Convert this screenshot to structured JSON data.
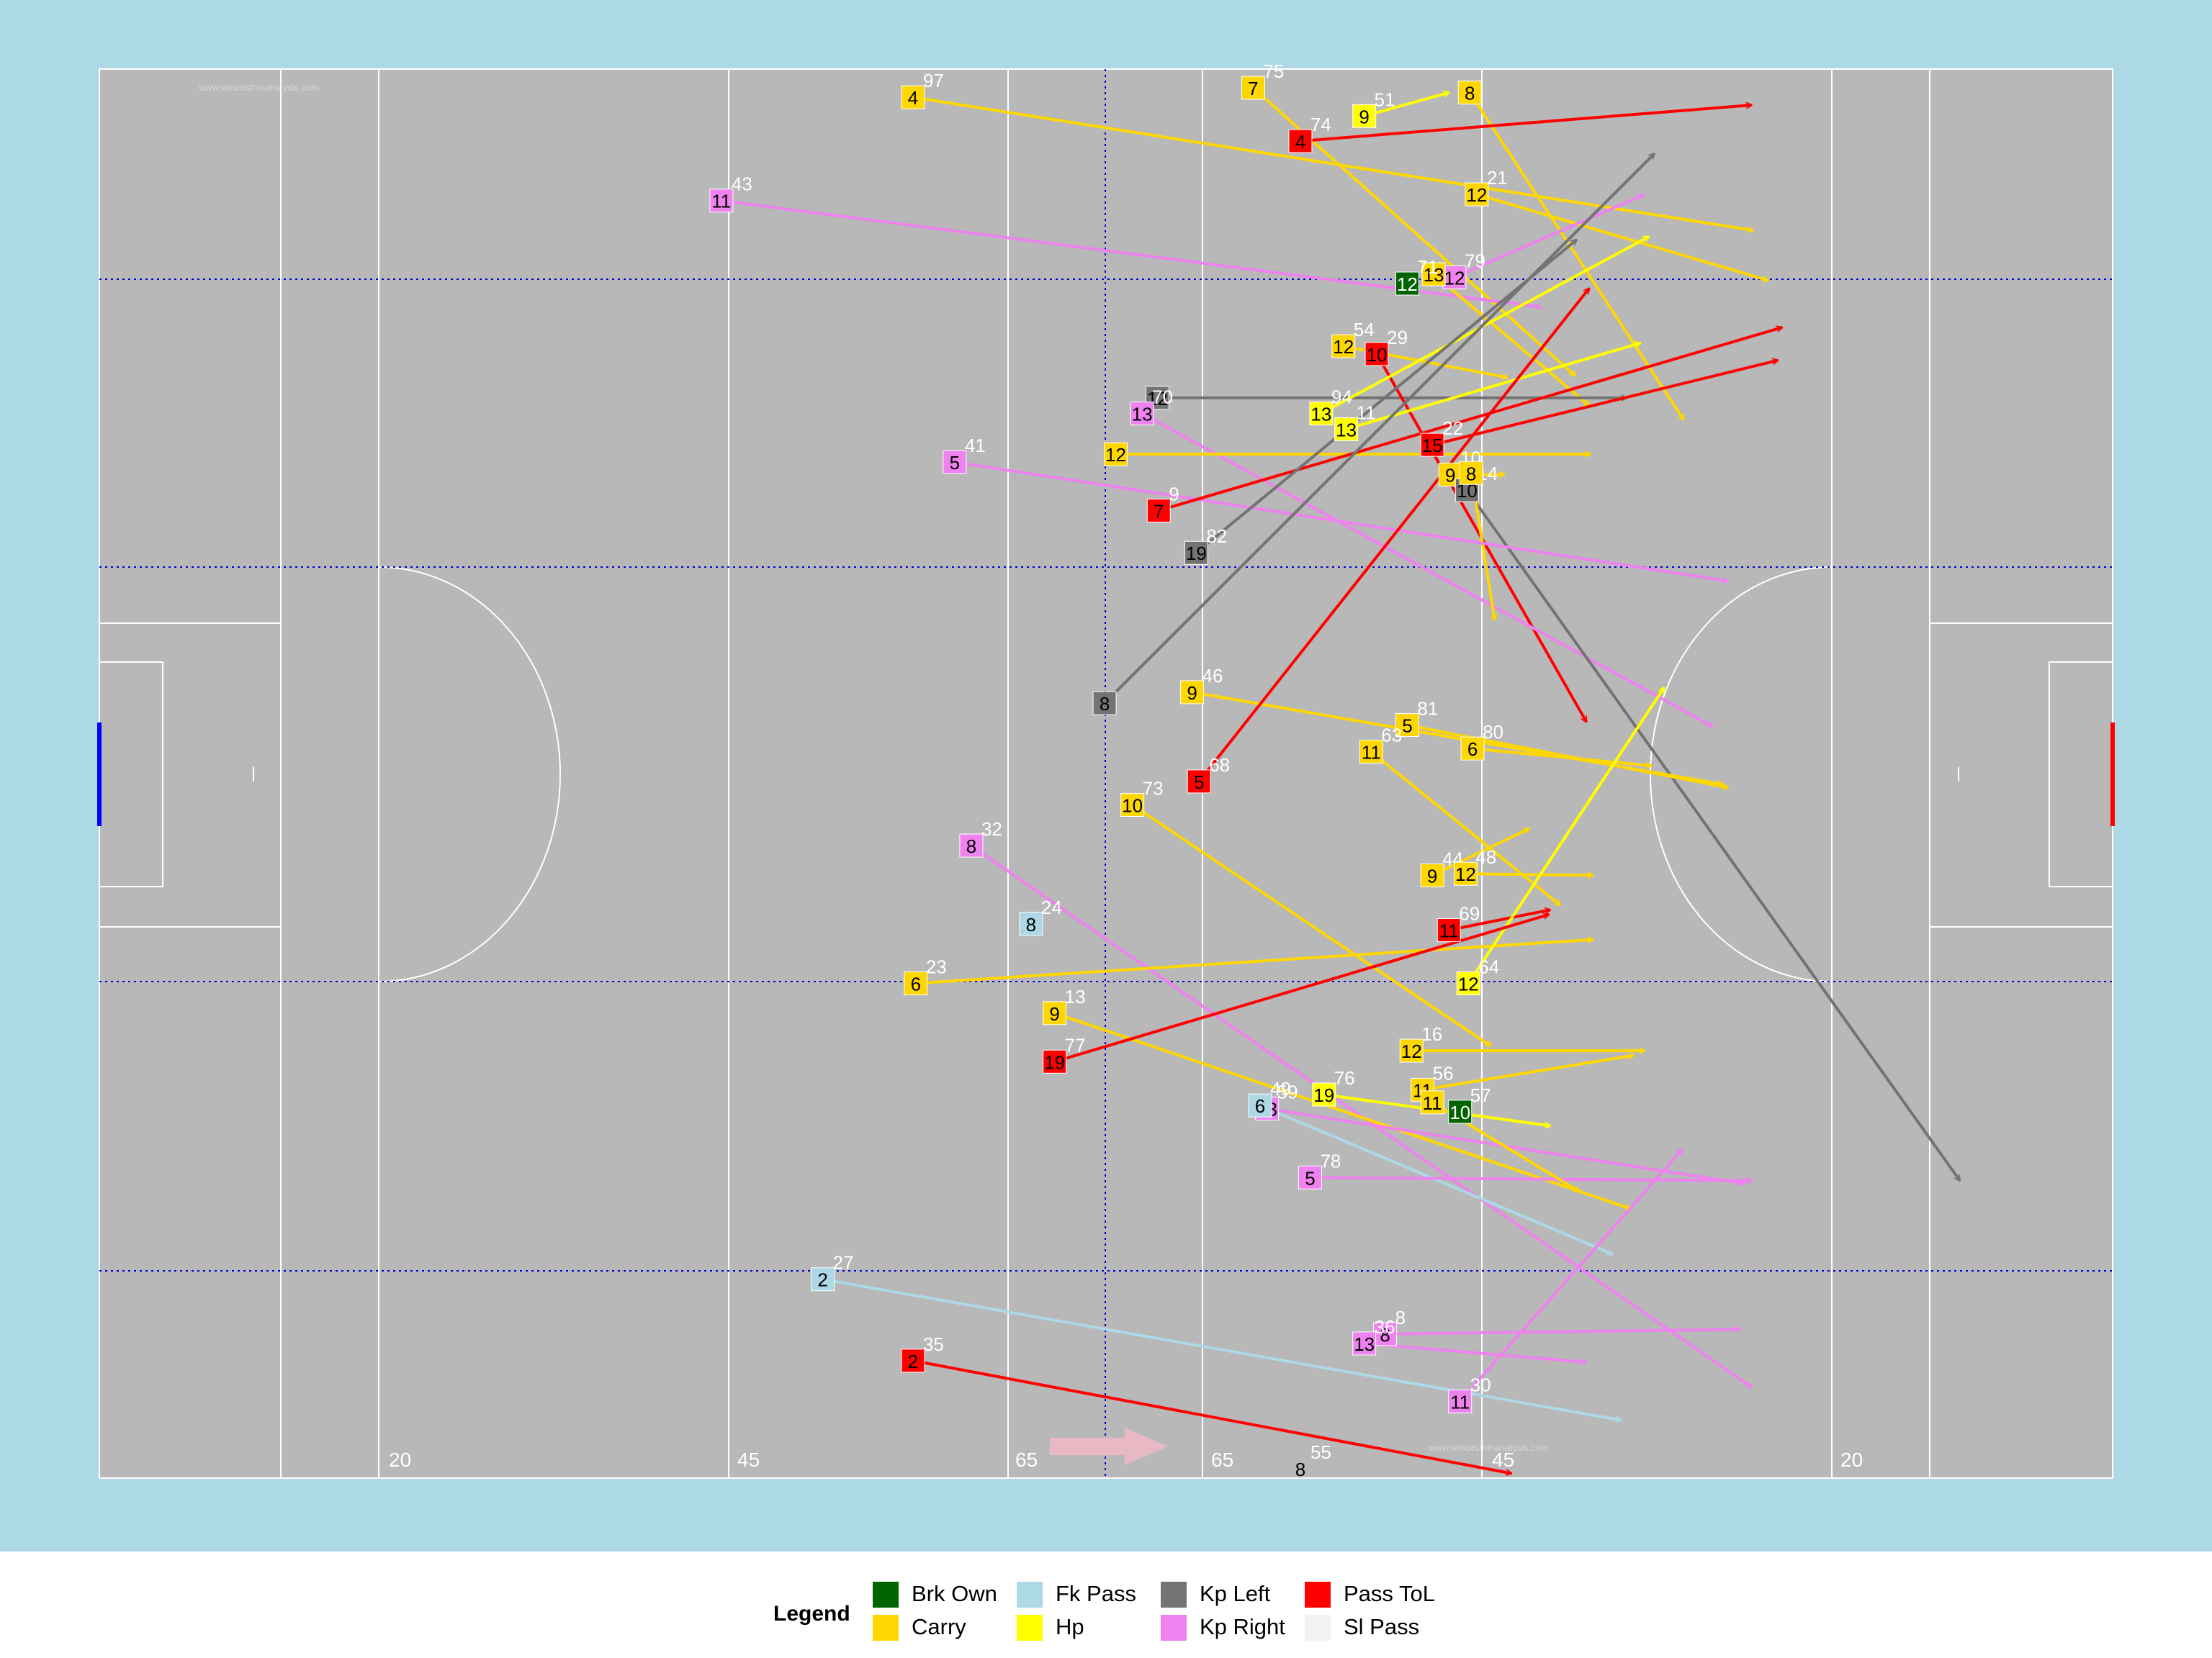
{
  "watermark": "www.wincesthinanalysis.com",
  "chart_data": {
    "type": "scatter",
    "subtype": "pitch-event-map-with-arrows",
    "x_axis": "pitch length (left goal to right goal)",
    "y_axis": "pitch width",
    "xlim": [
      0,
      145
    ],
    "ylim": [
      0,
      90
    ],
    "distance_markings": [
      "20",
      "45",
      "65",
      "65",
      "45",
      "20"
    ],
    "attack_direction": "left-to-right",
    "legend": {
      "title": "Legend",
      "position": "bottom",
      "items": [
        {
          "label": "Brk Own",
          "color": "#006400"
        },
        {
          "label": "Carry",
          "color": "#FFD700"
        },
        {
          "label": "Fk Pass",
          "color": "#ADD8E6"
        },
        {
          "label": "Hp",
          "color": "#FFFF00"
        },
        {
          "label": "Kp Left",
          "color": "#737373"
        },
        {
          "label": "Kp Right",
          "color": "#EE82EE"
        },
        {
          "label": "Pass ToL",
          "color": "#FF0000"
        },
        {
          "label": "Sl Pass",
          "color": "#F2F2F2"
        }
      ]
    },
    "events": [
      {
        "type": "Carry",
        "player": "4",
        "minute": "97",
        "x": 58.6,
        "y": 88.2,
        "end_x": 119.1,
        "end_y": 79.7
      },
      {
        "type": "Carry",
        "player": "7",
        "minute": "75",
        "x": 83.1,
        "y": 88.8,
        "end_x": 106.3,
        "end_y": 70.4
      },
      {
        "type": "Hp",
        "player": "9",
        "minute": "51",
        "x": 91.1,
        "y": 87.0,
        "end_x": 97.2,
        "end_y": 88.5
      },
      {
        "type": "Carry",
        "player": "8",
        "minute": "",
        "x": 98.7,
        "y": 88.5,
        "end_x": 114.1,
        "end_y": 67.6
      },
      {
        "type": "Pass ToL",
        "player": "4",
        "minute": "74",
        "x": 86.5,
        "y": 85.4,
        "end_x": 119.0,
        "end_y": 87.7
      },
      {
        "type": "Carry",
        "player": "12",
        "minute": "21",
        "x": 99.2,
        "y": 82.0,
        "end_x": 120.2,
        "end_y": 76.5
      },
      {
        "type": "Kp Right",
        "player": "11",
        "minute": "43",
        "x": 44.8,
        "y": 81.6,
        "end_x": 103.8,
        "end_y": 74.8
      },
      {
        "type": "Kp Right",
        "player": "12",
        "minute": "79",
        "x": 97.6,
        "y": 76.7,
        "end_x": 111.3,
        "end_y": 82.0
      },
      {
        "type": "Carry",
        "player": "13",
        "minute": "",
        "x": 96.1,
        "y": 76.9,
        "end_x": 107.3,
        "end_y": 68.5
      },
      {
        "type": "Brk Own",
        "player": "12",
        "minute": "71",
        "x": 94.2,
        "y": 76.3,
        "end_x": 94.2,
        "end_y": 76.3
      },
      {
        "type": "Kp Left",
        "player": "12",
        "minute": "",
        "x": 76.2,
        "y": 69.0,
        "end_x": 110.0,
        "end_y": 69.0
      },
      {
        "type": "Carry",
        "player": "12",
        "minute": "54",
        "x": 89.6,
        "y": 72.3,
        "end_x": 101.4,
        "end_y": 70.3
      },
      {
        "type": "Pass ToL",
        "player": "10",
        "minute": "29",
        "x": 92.0,
        "y": 71.8,
        "end_x": 107.1,
        "end_y": 48.3
      },
      {
        "type": "Hp",
        "player": "13",
        "minute": "94",
        "x": 88.0,
        "y": 68.0,
        "end_x": 111.6,
        "end_y": 79.3
      },
      {
        "type": "Hp",
        "player": "13",
        "minute": "11",
        "x": 89.8,
        "y": 67.0,
        "end_x": 111.0,
        "end_y": 72.5
      },
      {
        "type": "Kp Right",
        "player": "13",
        "minute": "70",
        "x": 75.1,
        "y": 68.0,
        "end_x": 116.2,
        "end_y": 48.0
      },
      {
        "type": "Pass ToL",
        "player": "15",
        "minute": "22",
        "x": 96.0,
        "y": 66.0,
        "end_x": 120.9,
        "end_y": 71.4
      },
      {
        "type": "Carry",
        "player": "12",
        "minute": "",
        "x": 73.2,
        "y": 65.4,
        "end_x": 107.4,
        "end_y": 65.4
      },
      {
        "type": "Carry",
        "player": "9",
        "minute": "10",
        "x": 97.3,
        "y": 64.1,
        "end_x": 101.2,
        "end_y": 64.1
      },
      {
        "type": "Kp Left",
        "player": "10",
        "minute": "14",
        "x": 98.5,
        "y": 63.1,
        "end_x": 134.0,
        "end_y": 19.0
      },
      {
        "type": "Carry",
        "player": "8",
        "minute": "",
        "x": 98.8,
        "y": 64.2,
        "end_x": 100.5,
        "end_y": 54.8
      },
      {
        "type": "Kp Right",
        "player": "5",
        "minute": "41",
        "x": 61.6,
        "y": 64.9,
        "end_x": 117.3,
        "end_y": 57.3
      },
      {
        "type": "Pass ToL",
        "player": "7",
        "minute": "9",
        "x": 76.3,
        "y": 61.8,
        "end_x": 121.2,
        "end_y": 73.5
      },
      {
        "type": "Kp Left",
        "player": "19",
        "minute": "82",
        "x": 79.0,
        "y": 59.1,
        "end_x": 106.4,
        "end_y": 79.1
      },
      {
        "type": "Kp Left",
        "player": "8",
        "minute": "",
        "x": 72.4,
        "y": 49.5,
        "end_x": 112.0,
        "end_y": 84.6
      },
      {
        "type": "Carry",
        "player": "9",
        "minute": "46",
        "x": 78.7,
        "y": 50.2,
        "end_x": 117.0,
        "end_y": 44.3
      },
      {
        "type": "Pass ToL",
        "player": "5",
        "minute": "68",
        "x": 79.2,
        "y": 44.5,
        "end_x": 107.3,
        "end_y": 76.0
      },
      {
        "type": "Carry",
        "player": "5",
        "minute": "81",
        "x": 94.2,
        "y": 48.1,
        "end_x": 117.3,
        "end_y": 44.1
      },
      {
        "type": "Carry",
        "player": "11",
        "minute": "63",
        "x": 91.6,
        "y": 46.4,
        "end_x": 105.2,
        "end_y": 36.6
      },
      {
        "type": "Carry",
        "player": "6",
        "minute": "80",
        "x": 98.9,
        "y": 46.6,
        "end_x": 111.8,
        "end_y": 45.5
      },
      {
        "type": "Carry",
        "player": "10",
        "minute": "73",
        "x": 74.4,
        "y": 43.0,
        "end_x": 100.2,
        "end_y": 27.6
      },
      {
        "type": "Kp Right",
        "player": "8",
        "minute": "32",
        "x": 62.8,
        "y": 40.4,
        "end_x": 119.0,
        "end_y": 5.8
      },
      {
        "type": "Carry",
        "player": "9",
        "minute": "44",
        "x": 96.0,
        "y": 38.5,
        "end_x": 103.0,
        "end_y": 41.5
      },
      {
        "type": "Carry",
        "player": "12",
        "minute": "48",
        "x": 98.4,
        "y": 38.6,
        "end_x": 107.6,
        "end_y": 38.5
      },
      {
        "type": "Fk Pass",
        "player": "8",
        "minute": "24",
        "x": 67.1,
        "y": 35.4,
        "end_x": 67.1,
        "end_y": 35.4
      },
      {
        "type": "Pass ToL",
        "player": "11",
        "minute": "69",
        "x": 97.2,
        "y": 35.0,
        "end_x": 104.5,
        "end_y": 36.3
      },
      {
        "type": "Carry",
        "player": "6",
        "minute": "23",
        "x": 58.8,
        "y": 31.6,
        "end_x": 107.6,
        "end_y": 34.4
      },
      {
        "type": "Hp",
        "player": "12",
        "minute": "64",
        "x": 98.6,
        "y": 31.6,
        "end_x": 112.7,
        "end_y": 50.5
      },
      {
        "type": "Carry",
        "player": "9",
        "minute": "13",
        "x": 68.8,
        "y": 29.7,
        "end_x": 110.3,
        "end_y": 17.2
      },
      {
        "type": "Pass ToL",
        "player": "19",
        "minute": "77",
        "x": 68.8,
        "y": 26.6,
        "end_x": 104.4,
        "end_y": 36.0
      },
      {
        "type": "Carry",
        "player": "12",
        "minute": "16",
        "x": 94.5,
        "y": 27.3,
        "end_x": 111.3,
        "end_y": 27.3
      },
      {
        "type": "Carry",
        "player": "11",
        "minute": "56",
        "x": 95.3,
        "y": 24.8,
        "end_x": 110.5,
        "end_y": 27.0
      },
      {
        "type": "Hp",
        "player": "19",
        "minute": "76",
        "x": 88.2,
        "y": 24.5,
        "end_x": 104.5,
        "end_y": 22.5
      },
      {
        "type": "Brk Own",
        "player": "10",
        "minute": "57",
        "x": 98.0,
        "y": 23.4,
        "end_x": 98.0,
        "end_y": 23.4
      },
      {
        "type": "Kp Right",
        "player": "13",
        "minute": "59",
        "x": 84.1,
        "y": 23.6,
        "end_x": 118.5,
        "end_y": 18.8
      },
      {
        "type": "Fk Pass",
        "player": "6",
        "minute": "49",
        "x": 83.6,
        "y": 23.8,
        "end_x": 109.0,
        "end_y": 14.3
      },
      {
        "type": "Kp Right",
        "player": "5",
        "minute": "78",
        "x": 87.2,
        "y": 19.2,
        "end_x": 119.0,
        "end_y": 19.0
      },
      {
        "type": "Carry",
        "player": "11",
        "minute": "",
        "x": 96.0,
        "y": 24.0,
        "end_x": 106.6,
        "end_y": 18.3
      },
      {
        "type": "Fk Pass",
        "player": "2",
        "minute": "27",
        "x": 52.1,
        "y": 12.7,
        "end_x": 109.6,
        "end_y": 3.7
      },
      {
        "type": "Kp Right",
        "player": "8",
        "minute": "8",
        "x": 92.6,
        "y": 9.2,
        "end_x": 118.2,
        "end_y": 9.5
      },
      {
        "type": "Kp Right",
        "player": "13",
        "minute": "36",
        "x": 91.1,
        "y": 8.6,
        "end_x": 107.1,
        "end_y": 7.4
      },
      {
        "type": "Kp Right",
        "player": "11",
        "minute": "30",
        "x": 98.0,
        "y": 4.9,
        "end_x": 114.0,
        "end_y": 21.0
      },
      {
        "type": "Pass ToL",
        "player": "2",
        "minute": "35",
        "x": 58.6,
        "y": 7.5,
        "end_x": 101.7,
        "end_y": 0.3
      },
      {
        "type": "Sl Pass",
        "player": "8",
        "minute": "55",
        "x": 86.5,
        "y": 0.6,
        "end_x": 86.5,
        "end_y": 0.6
      }
    ]
  }
}
